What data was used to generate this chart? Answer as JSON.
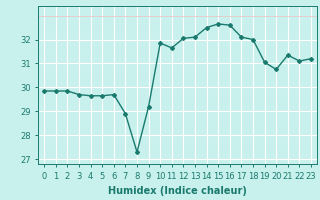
{
  "x": [
    0,
    1,
    2,
    3,
    4,
    5,
    6,
    7,
    8,
    9,
    10,
    11,
    12,
    13,
    14,
    15,
    16,
    17,
    18,
    19,
    20,
    21,
    22,
    23
  ],
  "y": [
    29.85,
    29.85,
    29.85,
    29.7,
    29.65,
    29.65,
    29.7,
    28.9,
    27.3,
    29.2,
    31.85,
    31.65,
    32.05,
    32.1,
    32.5,
    32.65,
    32.6,
    32.1,
    32.0,
    31.05,
    30.75,
    31.35,
    31.1,
    31.2
  ],
  "line_color": "#1a7a6e",
  "marker": "D",
  "marker_size": 2.0,
  "line_width": 1.0,
  "bg_color": "#c8f0ec",
  "grid_color_major": "#ffffff",
  "grid_color_minor": "#e8c8c8",
  "xlabel": "Humidex (Indice chaleur)",
  "xlabel_fontsize": 7,
  "xlim": [
    -0.5,
    23.5
  ],
  "ylim": [
    26.8,
    33.4
  ],
  "yticks": [
    27,
    28,
    29,
    30,
    31,
    32
  ],
  "xticks": [
    0,
    1,
    2,
    3,
    4,
    5,
    6,
    7,
    8,
    9,
    10,
    11,
    12,
    13,
    14,
    15,
    16,
    17,
    18,
    19,
    20,
    21,
    22,
    23
  ],
  "tick_fontsize": 6.0
}
